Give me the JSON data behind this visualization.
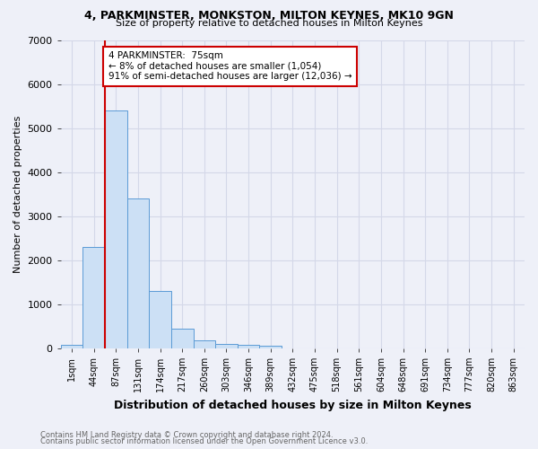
{
  "title": "4, PARKMINSTER, MONKSTON, MILTON KEYNES, MK10 9GN",
  "subtitle": "Size of property relative to detached houses in Milton Keynes",
  "xlabel": "Distribution of detached houses by size in Milton Keynes",
  "ylabel": "Number of detached properties",
  "footnote1": "Contains HM Land Registry data © Crown copyright and database right 2024.",
  "footnote2": "Contains public sector information licensed under the Open Government Licence v3.0.",
  "bin_labels": [
    "1sqm",
    "44sqm",
    "87sqm",
    "131sqm",
    "174sqm",
    "217sqm",
    "260sqm",
    "303sqm",
    "346sqm",
    "389sqm",
    "432sqm",
    "475sqm",
    "518sqm",
    "561sqm",
    "604sqm",
    "648sqm",
    "691sqm",
    "734sqm",
    "777sqm",
    "820sqm",
    "863sqm"
  ],
  "bin_values": [
    75,
    2300,
    5400,
    3400,
    1300,
    450,
    175,
    100,
    75,
    50,
    0,
    0,
    0,
    0,
    0,
    0,
    0,
    0,
    0,
    0,
    0
  ],
  "bar_color": "#cce0f5",
  "bar_edgecolor": "#5b9bd5",
  "annotation_text": "4 PARKMINSTER:  75sqm\n← 8% of detached houses are smaller (1,054)\n91% of semi-detached houses are larger (12,036) →",
  "annotation_box_facecolor": "#ffffff",
  "annotation_box_edgecolor": "#cc0000",
  "vline_color": "#cc0000",
  "vline_x": 1.5,
  "ylim": [
    0,
    7000
  ],
  "yticks": [
    0,
    1000,
    2000,
    3000,
    4000,
    5000,
    6000,
    7000
  ],
  "grid_color": "#d4d8e8",
  "background_color": "#eef0f8",
  "title_fontsize": 9,
  "subtitle_fontsize": 8,
  "ylabel_fontsize": 8,
  "xlabel_fontsize": 9,
  "tick_fontsize": 7,
  "footnote_fontsize": 6,
  "footnote_color": "#666666"
}
